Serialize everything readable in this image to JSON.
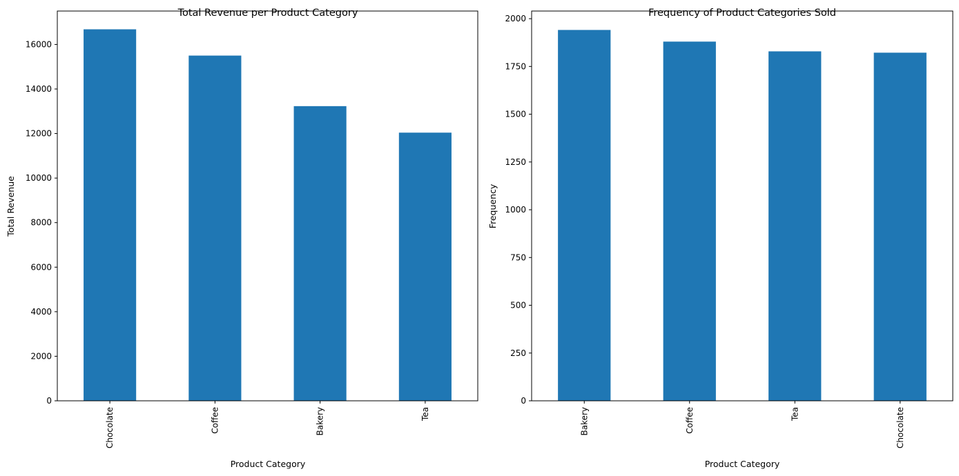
{
  "chart_data": [
    {
      "type": "bar",
      "title": "Total Revenue per Product Category",
      "xlabel": "Product Category",
      "ylabel": "Total Revenue",
      "categories": [
        "Chocolate",
        "Coffee",
        "Bakery",
        "Tea"
      ],
      "values": [
        16680,
        15500,
        13230,
        12040
      ],
      "ylim": [
        0,
        17500
      ],
      "yticks": [
        0,
        2000,
        4000,
        6000,
        8000,
        10000,
        12000,
        14000,
        16000
      ],
      "ytick_labels": [
        "0",
        "2000",
        "4000",
        "6000",
        "8000",
        "10000",
        "12000",
        "14000",
        "16000"
      ],
      "color": "#1f77b4",
      "grid": false,
      "legend": false
    },
    {
      "type": "bar",
      "title": "Frequency of Product Categories Sold",
      "xlabel": "Product Category",
      "ylabel": "Frequency",
      "categories": [
        "Bakery",
        "Coffee",
        "Tea",
        "Chocolate"
      ],
      "values": [
        1941,
        1880,
        1829,
        1822
      ],
      "ylim": [
        0,
        2040
      ],
      "yticks": [
        0,
        250,
        500,
        750,
        1000,
        1250,
        1500,
        1750,
        2000
      ],
      "ytick_labels": [
        "0",
        "250",
        "500",
        "750",
        "1000",
        "1250",
        "1500",
        "1750",
        "2000"
      ],
      "color": "#1f77b4",
      "grid": false,
      "legend": false
    }
  ]
}
